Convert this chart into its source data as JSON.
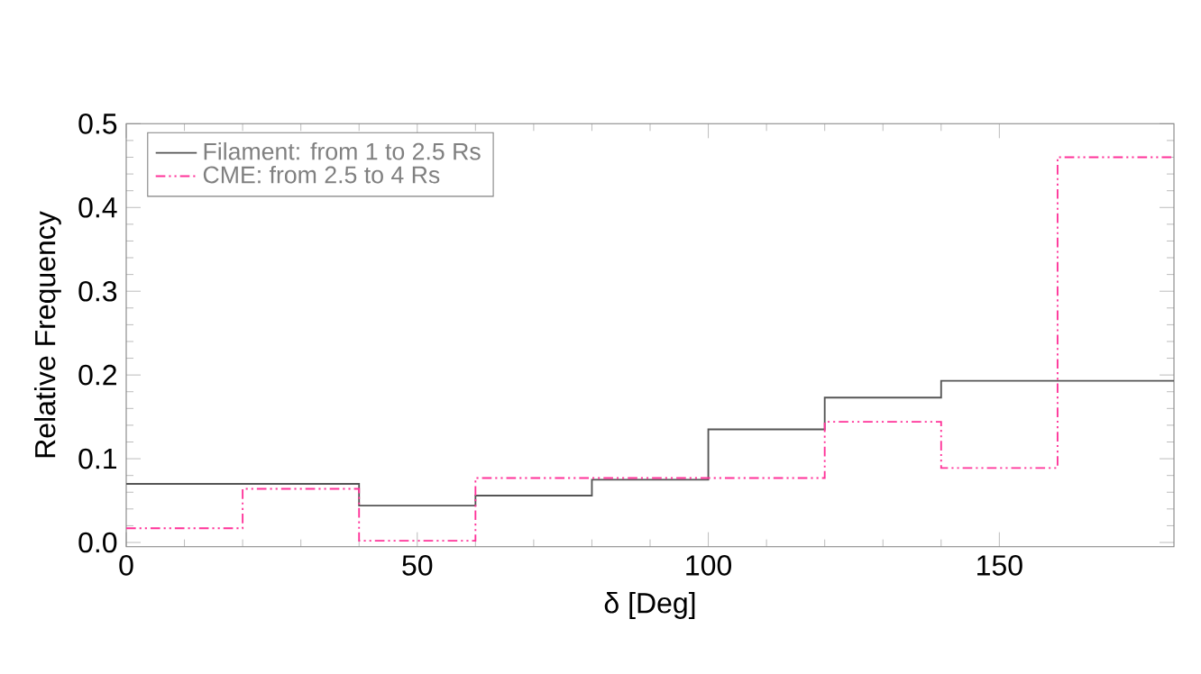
{
  "chart_data": {
    "type": "histogram",
    "xlabel": "δ [Deg]",
    "ylabel": "Relative Frequency",
    "bins": [
      0,
      20,
      40,
      60,
      80,
      100,
      120,
      140,
      160,
      180
    ],
    "series": [
      {
        "name": "Filament: from 1 to 2.5 Rs",
        "color": "#555555",
        "line_style": "solid",
        "values": [
          0.07,
          0.07,
          0.044,
          0.056,
          0.075,
          0.135,
          0.173,
          0.193,
          0.193
        ]
      },
      {
        "name": "CME: from 2.5 to 4 Rs",
        "color": "#ff3399",
        "line_style": "dashdotdot",
        "values": [
          0.017,
          0.064,
          0.002,
          0.077,
          0.077,
          0.077,
          0.144,
          0.089,
          0.46
        ]
      }
    ],
    "xlim": [
      0,
      180
    ],
    "ylim": [
      -0.005,
      0.5
    ],
    "xticks": [
      0,
      50,
      100,
      150
    ],
    "yticks": [
      {
        "value": 0,
        "label": "0.0"
      },
      0.1,
      0.2,
      0.3,
      0.4,
      0.5
    ],
    "grid": false,
    "legend": "top left"
  }
}
